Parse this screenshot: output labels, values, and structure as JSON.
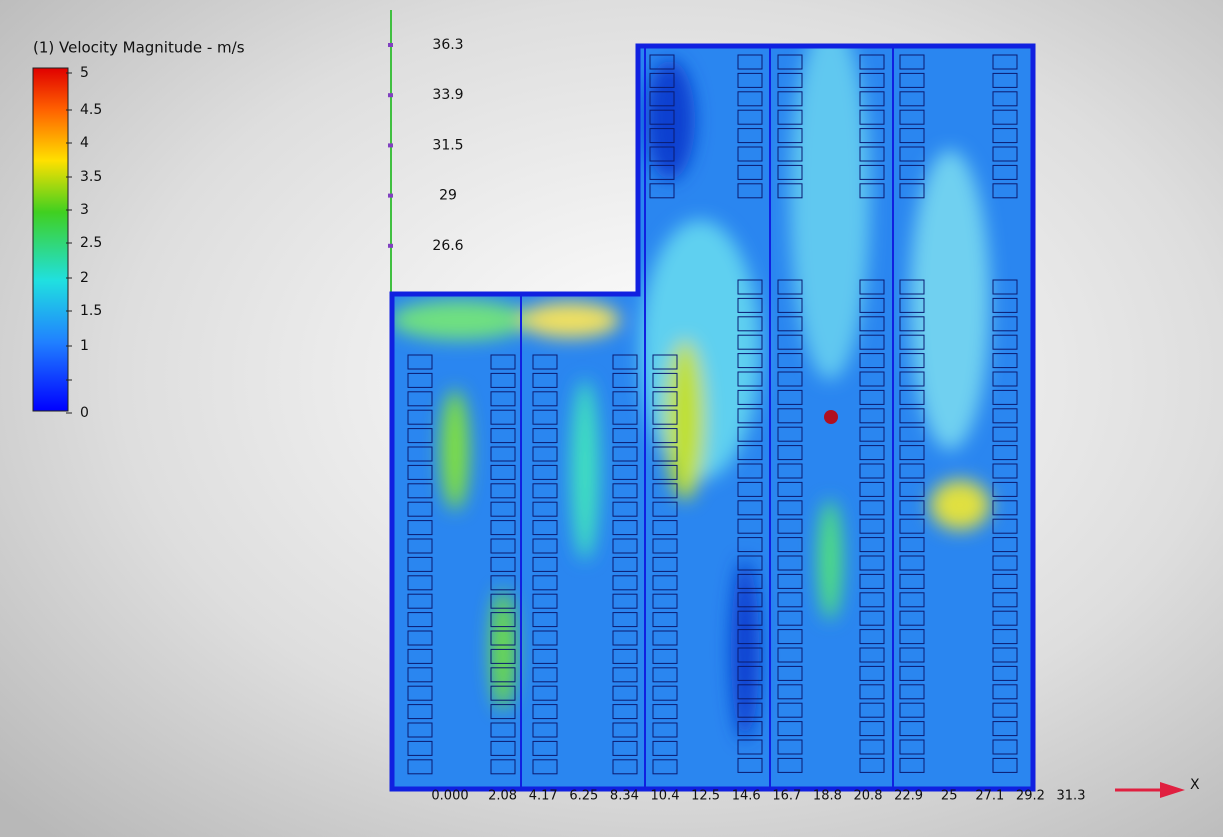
{
  "legend": {
    "title": "(1) Velocity Magnitude - m/s",
    "ticks": [
      "5",
      "4.5",
      "4",
      "3.5",
      "3",
      "2.5",
      "2",
      "1.5",
      "1",
      "0"
    ]
  },
  "y_axis": {
    "labels": [
      "36.3",
      "33.9",
      "31.5",
      "29",
      "26.6"
    ]
  },
  "x_axis": {
    "name": "X",
    "labels": [
      "0.000",
      "2.08",
      "4.17",
      "6.25",
      "8.34",
      "10.4",
      "12.5",
      "14.6",
      "16.7",
      "18.8",
      "20.8",
      "22.9",
      "25",
      "27.1",
      "29.2",
      "31.3"
    ]
  }
}
